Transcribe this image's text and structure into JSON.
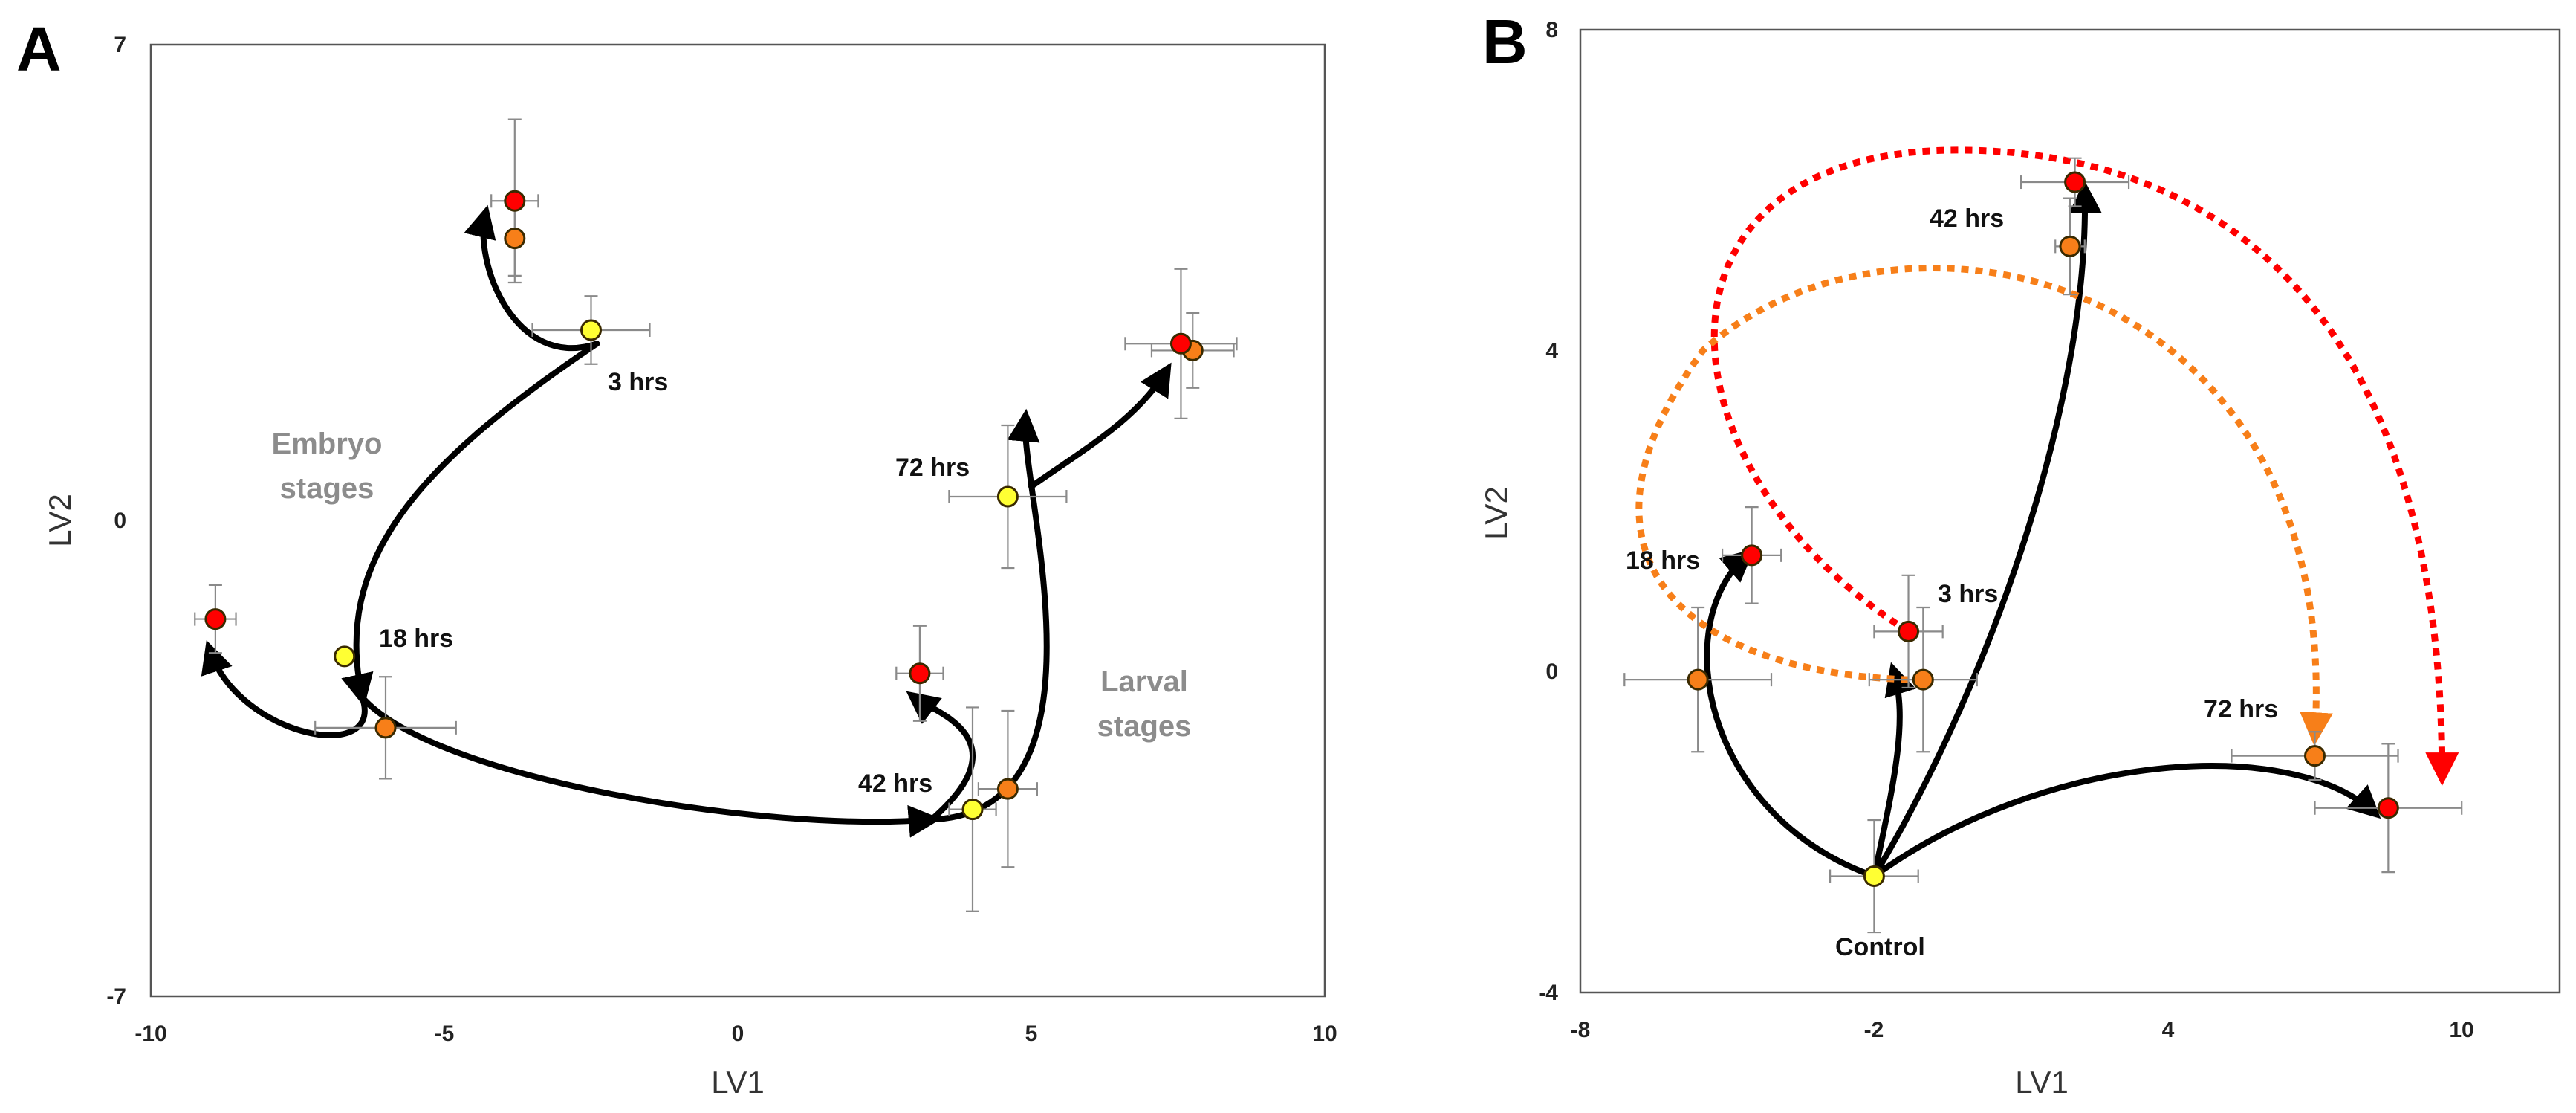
{
  "colors": {
    "yellow": "#ffff33",
    "orange": "#f77f19",
    "red": "#ff0000",
    "arrow": "#000000",
    "errorbar": "#8a8a8a",
    "stage_text": "#8c8c8c"
  },
  "chart_data": [
    {
      "type": "scatter",
      "panel": "A",
      "xlabel": "LV1",
      "ylabel": "LV2",
      "xlim": [
        -10,
        10
      ],
      "ylim": [
        -7,
        7
      ],
      "xticks": [
        "-10",
        "-5",
        "0",
        "5",
        "10"
      ],
      "yticks": [
        "7",
        "0",
        "-7"
      ],
      "annotations": [
        "3 hrs",
        "18 hrs",
        "42 hrs",
        "72 hrs"
      ],
      "stage_labels": {
        "embryo": [
          "Embryo",
          "stages"
        ],
        "larval": [
          "Larval",
          "stages"
        ]
      },
      "series": [
        {
          "name": "yellow",
          "color": "yellow",
          "points": [
            {
              "x": -2.5,
              "y": 2.8,
              "xerr": 1.0,
              "yerr": 0.5
            },
            {
              "x": -6.7,
              "y": -2.0,
              "xerr": 0.0,
              "yerr": 0.0
            },
            {
              "x": 4.6,
              "y": 0.35,
              "xerr": 1.0,
              "yerr": 1.05
            },
            {
              "x": 4.0,
              "y": -4.25,
              "xerr": 0.4,
              "yerr": 1.5
            }
          ]
        },
        {
          "name": "orange",
          "color": "orange",
          "points": [
            {
              "x": -3.8,
              "y": 4.15,
              "xerr": 0.0,
              "yerr": 0.55
            },
            {
              "x": -6.0,
              "y": -3.05,
              "xerr": 1.2,
              "yerr": 0.75
            },
            {
              "x": 7.75,
              "y": 2.5,
              "xerr": 0.7,
              "yerr": 0.55
            },
            {
              "x": 4.6,
              "y": -3.95,
              "xerr": 0.5,
              "yerr": 1.15
            }
          ]
        },
        {
          "name": "red",
          "color": "red",
          "points": [
            {
              "x": -3.8,
              "y": 4.7,
              "xerr": 0.4,
              "yerr": 1.2
            },
            {
              "x": -8.9,
              "y": -1.45,
              "xerr": 0.35,
              "yerr": 0.5
            },
            {
              "x": 7.55,
              "y": 2.6,
              "xerr": 0.95,
              "yerr": 1.1
            },
            {
              "x": 3.1,
              "y": -2.25,
              "xerr": 0.4,
              "yerr": 0.7
            }
          ]
        }
      ],
      "arrows": [
        {
          "from": [
            -2.4,
            2.6
          ],
          "c1": [
            -3.8,
            2.2
          ],
          "c2": [
            -4.5,
            3.8
          ],
          "to": [
            -4.3,
            4.5
          ]
        },
        {
          "from": [
            -2.4,
            2.6
          ],
          "c1": [
            -5.5,
            0.8
          ],
          "c2": [
            -6.9,
            -0.6
          ],
          "to": [
            -6.4,
            -2.6
          ]
        },
        {
          "from": [
            -6.4,
            -2.6
          ],
          "c1": [
            -6.0,
            -3.6
          ],
          "c2": [
            -8.5,
            -3.2
          ],
          "to": [
            -9.0,
            -1.9
          ]
        },
        {
          "from": [
            -6.4,
            -2.6
          ],
          "c1": [
            -5.2,
            -3.8
          ],
          "c2": [
            0.5,
            -4.6
          ],
          "to": [
            3.3,
            -4.4
          ]
        },
        {
          "from": [
            3.3,
            -4.4
          ],
          "c1": [
            6.5,
            -4.3
          ],
          "c2": [
            4.8,
            0.5
          ],
          "to": [
            4.9,
            1.5
          ]
        },
        {
          "from": [
            3.3,
            -4.4
          ],
          "c1": [
            4.9,
            -3.2
          ],
          "c2": [
            3.3,
            -2.8
          ],
          "to": [
            3.0,
            -2.6
          ]
        },
        {
          "from": [
            5.0,
            0.5
          ],
          "c1": [
            6.0,
            1.1
          ],
          "c2": [
            6.8,
            1.5
          ],
          "to": [
            7.3,
            2.2
          ]
        }
      ]
    },
    {
      "type": "scatter",
      "panel": "B",
      "xlabel": "LV1",
      "ylabel": "LV2",
      "xlim": [
        -8,
        12
      ],
      "ylim": [
        -4,
        8
      ],
      "xticks": [
        "-8",
        "-2",
        "4",
        "10"
      ],
      "yticks": [
        "8",
        "4",
        "0",
        "-4"
      ],
      "annotations": [
        "42 hrs",
        "18 hrs",
        "3 hrs",
        "72 hrs",
        "Control"
      ],
      "series": [
        {
          "name": "yellow",
          "color": "yellow",
          "points": [
            {
              "x": -2.0,
              "y": -2.55,
              "xerr": 0.9,
              "yerr": 0.7
            }
          ]
        },
        {
          "name": "orange",
          "color": "orange",
          "points": [
            {
              "x": 2.0,
              "y": 5.3,
              "xerr": 0.3,
              "yerr": 0.6
            },
            {
              "x": -5.6,
              "y": -0.1,
              "xerr": 1.5,
              "yerr": 0.9
            },
            {
              "x": -1.0,
              "y": -0.1,
              "xerr": 1.1,
              "yerr": 0.9
            },
            {
              "x": 7.0,
              "y": -1.05,
              "xerr": 1.7,
              "yerr": 0.3
            }
          ]
        },
        {
          "name": "red",
          "color": "red",
          "points": [
            {
              "x": 2.1,
              "y": 6.1,
              "xerr": 1.1,
              "yerr": 0.3
            },
            {
              "x": -4.5,
              "y": 1.45,
              "xerr": 0.6,
              "yerr": 0.6
            },
            {
              "x": -1.3,
              "y": 0.5,
              "xerr": 0.7,
              "yerr": 0.7
            },
            {
              "x": 8.5,
              "y": -1.7,
              "xerr": 1.5,
              "yerr": 0.8
            }
          ]
        }
      ],
      "arrows": [
        {
          "style": "black",
          "from": [
            -2.0,
            -2.55
          ],
          "c1": [
            -5.5,
            -1.8
          ],
          "c2": [
            -6.2,
            0.6
          ],
          "to": [
            -4.6,
            1.45
          ]
        },
        {
          "style": "black",
          "from": [
            -2.0,
            -2.55
          ],
          "c1": [
            -1.6,
            -1.4
          ],
          "c2": [
            -1.3,
            -0.6
          ],
          "to": [
            -1.6,
            0.0
          ]
        },
        {
          "style": "black",
          "from": [
            -2.0,
            -2.55
          ],
          "c1": [
            0.5,
            0.0
          ],
          "c2": [
            2.4,
            3.5
          ],
          "to": [
            2.3,
            6.0
          ]
        },
        {
          "style": "black",
          "from": [
            -2.0,
            -2.55
          ],
          "c1": [
            1.5,
            -1.0
          ],
          "c2": [
            6.5,
            -0.8
          ],
          "to": [
            8.2,
            -1.75
          ]
        },
        {
          "style": "red",
          "from": [
            -1.3,
            0.5
          ],
          "c1": [
            -6.5,
            2.5
          ],
          "c2": [
            -7.0,
            6.5
          ],
          "to": [
            -0.3,
            6.5
          ],
          "c3": [
            5.0,
            6.5
          ],
          "c4": [
            9.6,
            4.5
          ],
          "to2": [
            9.6,
            -1.3
          ]
        },
        {
          "style": "orange",
          "from": [
            -1.3,
            -0.1
          ],
          "c1": [
            -6.0,
            0.0
          ],
          "c2": [
            -8.5,
            1.5
          ],
          "to": [
            -5.5,
            4.0
          ],
          "c3": [
            -1.5,
            6.2
          ],
          "c4": [
            7.6,
            5.0
          ],
          "to2": [
            7.0,
            -0.8
          ]
        }
      ]
    }
  ]
}
